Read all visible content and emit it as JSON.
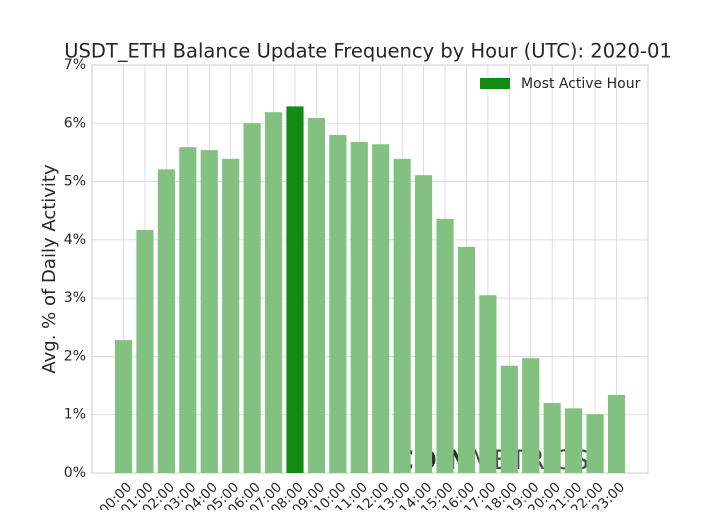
{
  "chart_data": {
    "type": "bar",
    "title": "USDT_ETH Balance Update Frequency by Hour (UTC): 2020-01",
    "y_label": "Avg. % of Daily Activity",
    "categories": [
      "00:00",
      "01:00",
      "02:00",
      "03:00",
      "04:00",
      "05:00",
      "06:00",
      "07:00",
      "08:00",
      "09:00",
      "10:00",
      "11:00",
      "12:00",
      "13:00",
      "14:00",
      "15:00",
      "16:00",
      "17:00",
      "18:00",
      "19:00",
      "20:00",
      "21:00",
      "22:00",
      "23:00"
    ],
    "values": [
      2.28,
      4.17,
      5.21,
      5.59,
      5.54,
      5.39,
      6.0,
      6.19,
      6.29,
      6.09,
      5.8,
      5.68,
      5.64,
      5.39,
      5.11,
      4.36,
      3.88,
      3.05,
      1.84,
      1.97,
      1.2,
      1.11,
      1.01,
      1.34
    ],
    "color": "#82c17f",
    "highlight": "08:00",
    "highlight_color": "#138a13",
    "legend": {
      "label": "Most Active Hour",
      "position": "upper right"
    },
    "ylim": [
      0,
      7
    ],
    "yticks": [
      {
        "value": 0,
        "label": "0%"
      },
      {
        "value": 1,
        "label": "1%"
      },
      {
        "value": 2,
        "label": "2%"
      },
      {
        "value": 3,
        "label": "3%"
      },
      {
        "value": 4,
        "label": "4%"
      },
      {
        "value": 5,
        "label": "5%"
      },
      {
        "value": 6,
        "label": "6%"
      },
      {
        "value": 7,
        "label": "7%"
      }
    ],
    "grid": true,
    "watermark_bold": "COIN",
    "watermark_light": "METRICS"
  }
}
